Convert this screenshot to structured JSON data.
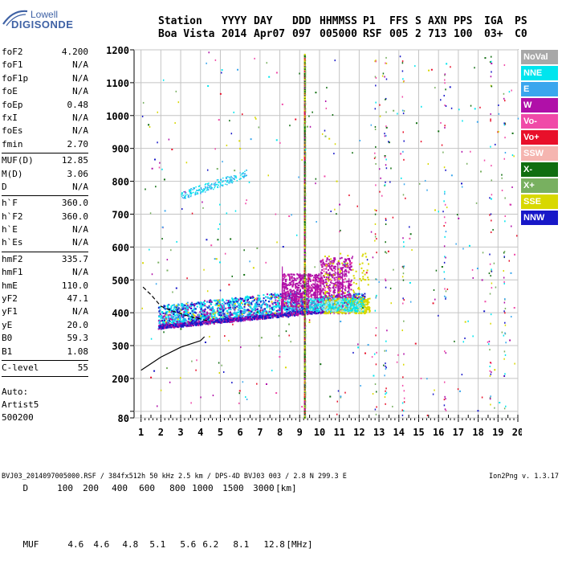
{
  "logo": {
    "line1": "Lowell",
    "line2": "DIGISONDE"
  },
  "header": {
    "row1": [
      {
        "key": "station_label",
        "text": "Station"
      },
      {
        "key": "year_label",
        "text": "YYYY"
      },
      {
        "key": "day_label",
        "text": "DAY"
      },
      {
        "key": "ddd_label",
        "text": "DDD"
      },
      {
        "key": "time_label",
        "text": "HHMMSS"
      },
      {
        "key": "p1_label",
        "text": "P1"
      },
      {
        "key": "ffs_label",
        "text": "FFS"
      },
      {
        "key": "s_label",
        "text": "S"
      },
      {
        "key": "axn_label",
        "text": "AXN"
      },
      {
        "key": "pps_label",
        "text": "PPS"
      },
      {
        "key": "iga_label",
        "text": "IGA"
      },
      {
        "key": "ps_label",
        "text": "PS"
      }
    ],
    "row2": [
      {
        "key": "station",
        "text": "Boa Vista"
      },
      {
        "key": "year",
        "text": "2014"
      },
      {
        "key": "day",
        "text": "Apr07"
      },
      {
        "key": "ddd",
        "text": "097"
      },
      {
        "key": "time",
        "text": "005000"
      },
      {
        "key": "p1",
        "text": "RSF"
      },
      {
        "key": "ffs",
        "text": "005"
      },
      {
        "key": "s",
        "text": "2"
      },
      {
        "key": "axn",
        "text": "713"
      },
      {
        "key": "pps",
        "text": "100"
      },
      {
        "key": "iga",
        "text": "03+"
      },
      {
        "key": "ps",
        "text": "C0"
      }
    ]
  },
  "parameters": [
    {
      "label": "foF2",
      "value": "4.200"
    },
    {
      "label": "foF1",
      "value": "N/A"
    },
    {
      "label": "foF1p",
      "value": "N/A"
    },
    {
      "label": "foE",
      "value": "N/A"
    },
    {
      "label": "foEp",
      "value": "0.48"
    },
    {
      "label": "fxI",
      "value": "N/A"
    },
    {
      "label": "foEs",
      "value": "N/A"
    },
    {
      "label": "fmin",
      "value": "2.70"
    },
    {
      "sep": true
    },
    {
      "label": "MUF(D)",
      "value": "12.85"
    },
    {
      "label": "M(D)",
      "value": "3.06"
    },
    {
      "label": "D",
      "value": "N/A"
    },
    {
      "sep": true
    },
    {
      "label": "h`F",
      "value": "360.0"
    },
    {
      "label": "h`F2",
      "value": "360.0"
    },
    {
      "label": "h`E",
      "value": "N/A"
    },
    {
      "label": "h`Es",
      "value": "N/A"
    },
    {
      "sep": true
    },
    {
      "label": "hmF2",
      "value": "335.7"
    },
    {
      "label": "hmF1",
      "value": "N/A"
    },
    {
      "label": "hmE",
      "value": "110.0"
    },
    {
      "label": "yF2",
      "value": "47.1"
    },
    {
      "label": "yF1",
      "value": "N/A"
    },
    {
      "label": "yE",
      "value": "20.0"
    },
    {
      "label": "B0",
      "value": "59.3"
    },
    {
      "label": "B1",
      "value": "1.08"
    },
    {
      "sep": true
    },
    {
      "label": "C-level",
      "value": "55"
    },
    {
      "sep": true
    }
  ],
  "auto_info": [
    "Auto:",
    "Artist5",
    "500200"
  ],
  "legend": [
    {
      "label": "NoVal",
      "color": "#a8a8a8"
    },
    {
      "label": "NNE",
      "color": "#00e5ee"
    },
    {
      "label": "E",
      "color": "#3aa6ee"
    },
    {
      "label": "W",
      "color": "#b010a8"
    },
    {
      "label": "Vo-",
      "color": "#f04aa8"
    },
    {
      "label": "Vo+",
      "color": "#e8102a"
    },
    {
      "label": "SSW",
      "color": "#f5b5b0"
    },
    {
      "label": "X-",
      "color": "#106e10"
    },
    {
      "label": "X+",
      "color": "#78b060"
    },
    {
      "label": "SSE",
      "color": "#d8d800"
    },
    {
      "label": "NNW",
      "color": "#1818c8"
    }
  ],
  "footer": {
    "d_label": "D",
    "d_values": [
      "100",
      "200",
      "400",
      "600",
      "800",
      "1000",
      "1500",
      "3000"
    ],
    "d_unit": "[km]",
    "muf_label": "MUF",
    "muf_values": [
      "4.6",
      "4.6",
      "4.8",
      "5.1",
      "5.6",
      "6.2",
      "8.1",
      "12.8"
    ],
    "muf_unit": "[MHz]",
    "caption": "BVJ03_2014097005000.RSF / 384fx512h 50 kHz 2.5 km / DPS-4D BVJ03 003 / 2.8 N 299.3 E",
    "version": "Ion2Png v. 1.3.17"
  },
  "chart_data": {
    "type": "scatter",
    "title": "",
    "xlabel": "",
    "ylabel": "",
    "xlim": [
      1,
      20
    ],
    "ylim": [
      80,
      1200
    ],
    "xticks": [
      1,
      2,
      3,
      4,
      5,
      6,
      7,
      8,
      9,
      10,
      11,
      12,
      13,
      14,
      15,
      16,
      17,
      18,
      19,
      20
    ],
    "yticks": [
      80,
      100,
      200,
      300,
      400,
      500,
      600,
      700,
      800,
      900,
      1000,
      1100,
      1200
    ],
    "ytick_labels": [
      "80",
      "",
      "200",
      "300",
      "400",
      "500",
      "600",
      "700",
      "800",
      "900",
      "1000",
      "1100",
      "1200"
    ],
    "grid": true,
    "legend_position": "right",
    "echo_regions": [
      {
        "name": "F2 trace main",
        "x": [
          1.8,
          12.3
        ],
        "y": [
          355,
          440
        ],
        "colors": [
          "NNE",
          "E",
          "NNW",
          "W"
        ]
      },
      {
        "name": "F2 spread upper",
        "x": [
          8.2,
          11.5
        ],
        "y": [
          420,
          560
        ],
        "colors": [
          "W",
          "SSE"
        ]
      },
      {
        "name": "high echoes",
        "x": [
          3.0,
          6.2
        ],
        "y": [
          740,
          830
        ],
        "colors": [
          "E",
          "NNE"
        ]
      },
      {
        "name": "vertical streak",
        "x": [
          9.2,
          9.3
        ],
        "y": [
          80,
          1180
        ],
        "colors": [
          "X-",
          "SSE",
          "W"
        ]
      }
    ],
    "profile_line": [
      [
        1,
        225
      ],
      [
        2,
        265
      ],
      [
        3,
        295
      ],
      [
        4,
        315
      ],
      [
        4.2,
        327
      ]
    ],
    "ionogram_fit_line": [
      [
        1.1,
        478
      ],
      [
        1.5,
        455
      ],
      [
        2.0,
        420
      ],
      [
        2.6,
        405
      ],
      [
        3.2,
        393
      ],
      [
        3.8,
        384
      ],
      [
        4.4,
        375
      ]
    ]
  }
}
